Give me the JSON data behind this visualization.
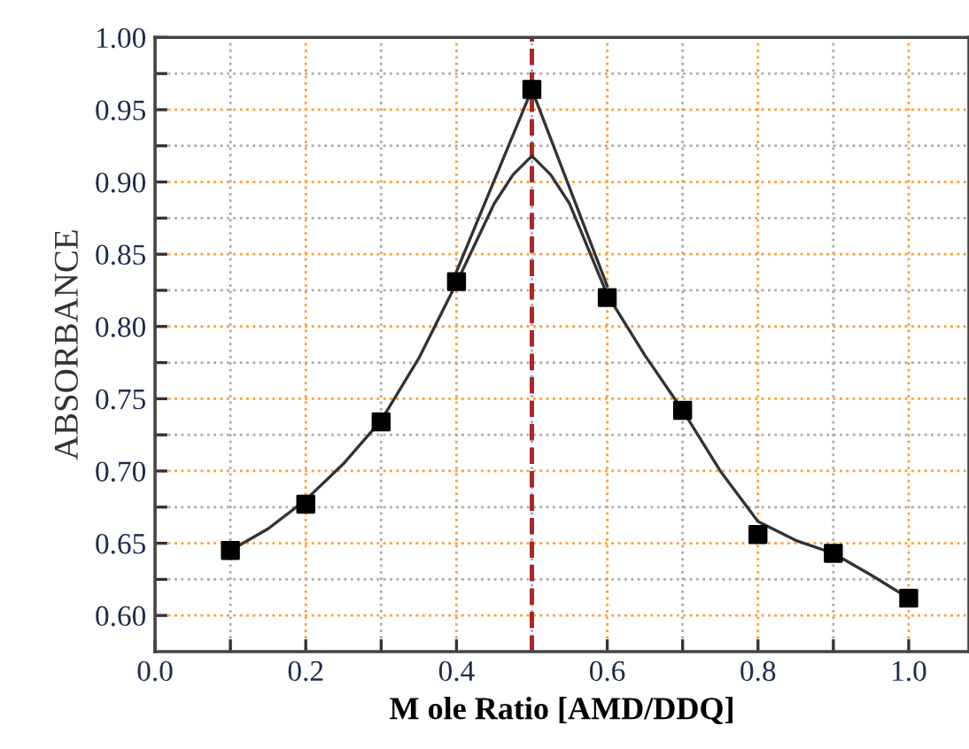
{
  "chart_data": {
    "type": "scatter",
    "xlabel": "M ole Ratio [AMD/DDQ]",
    "ylabel": "ABSORBANCE",
    "x": [
      0.1,
      0.2,
      0.3,
      0.4,
      0.5,
      0.6,
      0.7,
      0.8,
      0.9,
      1.0
    ],
    "series": [
      {
        "type": "line",
        "color": "#333333",
        "marker": "none",
        "x": [
          0.1,
          0.15,
          0.2,
          0.25,
          0.3,
          0.35,
          0.4,
          0.45,
          0.475,
          0.5,
          0.525,
          0.55,
          0.6,
          0.65,
          0.7,
          0.75,
          0.8,
          0.85,
          0.9,
          0.95,
          1.0
        ],
        "values": [
          0.645,
          0.66,
          0.68,
          0.705,
          0.735,
          0.778,
          0.83,
          0.885,
          0.905,
          0.918,
          0.905,
          0.885,
          0.822,
          0.78,
          0.742,
          0.7,
          0.665,
          0.652,
          0.643,
          0.628,
          0.612
        ]
      },
      {
        "type": "line",
        "color": "#333333",
        "marker": "none",
        "x": [
          0.4,
          0.5,
          0.6
        ],
        "values": [
          0.838,
          0.964,
          0.828
        ]
      },
      {
        "color": "#000000",
        "marker": "square",
        "values": [
          0.645,
          0.677,
          0.734,
          0.831,
          0.964,
          0.82,
          0.742,
          0.656,
          0.643,
          0.612
        ]
      }
    ],
    "ref_lines": [
      {
        "axis": "x",
        "value": 0.5,
        "color": "#a52a2a",
        "line_style": "dashed"
      }
    ],
    "xlim": [
      0.0,
      1.08
    ],
    "ylim": [
      0.575,
      1.0
    ],
    "xticks": [
      {
        "value": 0.0,
        "label": "0.0"
      },
      {
        "value": 0.1,
        "label": null
      },
      0.2,
      {
        "value": 0.3,
        "label": null
      },
      0.4,
      {
        "value": 0.5,
        "label": null
      },
      0.6,
      {
        "value": 0.7,
        "label": null
      },
      0.8,
      {
        "value": 0.9,
        "label": null
      },
      {
        "value": 1.0,
        "label": "1.0"
      }
    ],
    "yticks": [
      {
        "value": 0.6,
        "label": "0.60"
      },
      {
        "value": 0.625,
        "label": null
      },
      0.65,
      {
        "value": 0.675,
        "label": null
      },
      {
        "value": 0.7,
        "label": "0.70"
      },
      {
        "value": 0.725,
        "label": null
      },
      0.75,
      {
        "value": 0.775,
        "label": null
      },
      {
        "value": 0.8,
        "label": "0.80"
      },
      {
        "value": 0.825,
        "label": null
      },
      0.85,
      {
        "value": 0.875,
        "label": null
      },
      {
        "value": 0.9,
        "label": "0.90"
      },
      {
        "value": 0.925,
        "label": null
      },
      0.95,
      {
        "value": 0.975,
        "label": null
      },
      {
        "value": 1.0,
        "label": "1.00"
      }
    ],
    "grid": true
  }
}
